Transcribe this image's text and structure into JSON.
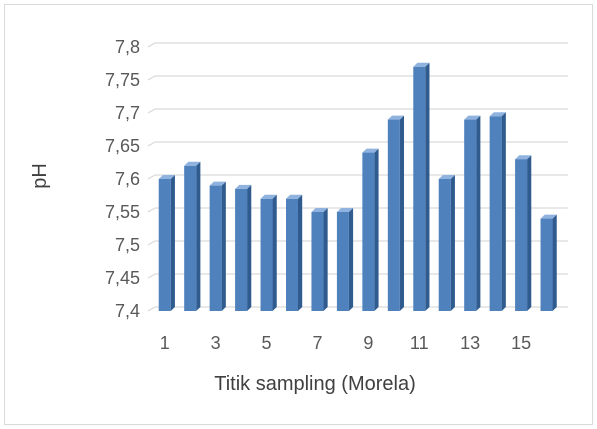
{
  "chart_data": {
    "type": "bar",
    "title": "",
    "xlabel": "Titik sampling (Morela)",
    "ylabel": "pH",
    "categories": [
      "1",
      "2",
      "3",
      "4",
      "5",
      "6",
      "7",
      "8",
      "9",
      "10",
      "11",
      "12",
      "13",
      "14",
      "15",
      "16"
    ],
    "x_tick_labels": [
      "1",
      "3",
      "5",
      "7",
      "9",
      "11",
      "13",
      "15"
    ],
    "values": [
      7.6,
      7.62,
      7.59,
      7.585,
      7.57,
      7.57,
      7.55,
      7.55,
      7.64,
      7.69,
      7.77,
      7.6,
      7.69,
      7.695,
      7.63,
      7.54
    ],
    "ylim": [
      7.4,
      7.8
    ],
    "y_ticks": [
      7.4,
      7.45,
      7.5,
      7.55,
      7.6,
      7.65,
      7.7,
      7.75,
      7.8
    ],
    "y_tick_labels": [
      "7,4",
      "7,45",
      "7,5",
      "7,55",
      "7,6",
      "7,65",
      "7,7",
      "7,75",
      "7,8"
    ],
    "grid": true,
    "legend": "none",
    "colors": {
      "bar_front": "#4f81bd",
      "bar_side": "#2f5b8f",
      "bar_top": "#8fb3de",
      "gridline": "#d9d9d9",
      "text": "#595959"
    }
  }
}
